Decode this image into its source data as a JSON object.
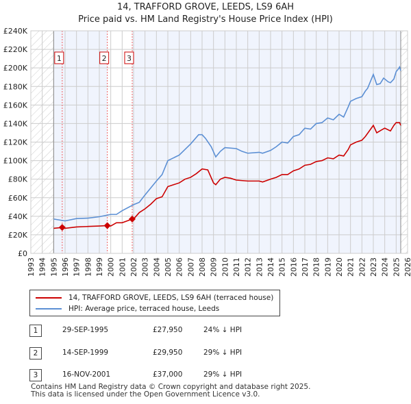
{
  "chart_data": {
    "type": "line",
    "title": "14, TRAFFORD GROVE, LEEDS, LS9 6AH",
    "subtitle": "Price paid vs. HM Land Registry's House Price Index (HPI)",
    "xlim": [
      1993,
      2026
    ],
    "ylim": [
      0,
      240000
    ],
    "x_ticks": [
      "1993",
      "1994",
      "1995",
      "1996",
      "1997",
      "1998",
      "1999",
      "2000",
      "2001",
      "2002",
      "2003",
      "2004",
      "2005",
      "2006",
      "2007",
      "2008",
      "2009",
      "2010",
      "2011",
      "2012",
      "2013",
      "2014",
      "2015",
      "2016",
      "2017",
      "2018",
      "2019",
      "2020",
      "2021",
      "2022",
      "2023",
      "2024",
      "2025",
      "2026"
    ],
    "y_ticks": [
      "£0",
      "£20K",
      "£40K",
      "£60K",
      "£80K",
      "£100K",
      "£120K",
      "£140K",
      "£160K",
      "£180K",
      "£200K",
      "£220K",
      "£240K"
    ],
    "grid": true,
    "series": [
      {
        "name": "14, TRAFFORD GROVE, LEEDS, LS9 6AH (terraced house)",
        "color": "#cc0000",
        "x": [
          1995,
          1995.75,
          1996,
          1997,
          1998,
          1999,
          1999.7,
          2000,
          2000.5,
          2001,
          2001.88,
          2002,
          2002.5,
          2003,
          2003.5,
          2004,
          2004.5,
          2005,
          2005.5,
          2006,
          2006.5,
          2007,
          2007.5,
          2008,
          2008.5,
          2009,
          2009.2,
          2009.6,
          2010,
          2010.5,
          2011,
          2012,
          2013,
          2013.3,
          2014,
          2014.5,
          2015,
          2015.5,
          2016,
          2016.5,
          2017,
          2017.5,
          2018,
          2018.5,
          2019,
          2019.5,
          2020,
          2020.4,
          2020.8,
          2021,
          2021.5,
          2022,
          2022.3,
          2023,
          2023.3,
          2023.7,
          2024,
          2024.5,
          2024.8,
          2025,
          2025.3,
          2025.4
        ],
        "y": [
          27,
          27.95,
          27,
          28.5,
          29,
          29.5,
          29.95,
          29.5,
          33,
          33,
          37,
          37,
          44,
          48,
          53,
          59,
          61,
          72,
          74,
          76,
          80,
          82,
          86,
          91,
          90,
          76,
          74,
          80,
          82,
          81,
          79,
          78,
          78,
          77,
          80,
          82,
          85,
          85,
          89,
          91,
          95,
          96,
          99,
          100,
          103,
          102,
          106,
          105,
          112,
          117,
          120,
          122,
          126,
          138,
          130,
          133,
          135,
          132,
          138,
          141,
          141,
          138
        ]
      },
      {
        "name": "HPI: Average price, terraced house, Leeds",
        "color": "#5b8fd4",
        "x": [
          1995,
          1996,
          1997,
          1998,
          1999,
          2000,
          2000.5,
          2001,
          2002,
          2002.5,
          2003,
          2004,
          2004.5,
          2005,
          2006,
          2006.5,
          2007,
          2007.7,
          2008,
          2008.3,
          2008.8,
          2009.2,
          2009.6,
          2010,
          2011,
          2011.5,
          2012,
          2013,
          2013.3,
          2014,
          2014.5,
          2015,
          2015.5,
          2016,
          2016.5,
          2017,
          2017.5,
          2018,
          2018.5,
          2019,
          2019.5,
          2020,
          2020.4,
          2020.8,
          2021,
          2021.5,
          2022,
          2022.3,
          2022.5,
          2023,
          2023.3,
          2023.6,
          2023.9,
          2024.3,
          2024.5,
          2024.8,
          2025,
          2025.2,
          2025.3,
          2025.4
        ],
        "y": [
          37,
          35,
          37.5,
          38,
          39.5,
          42,
          42,
          46,
          52.5,
          55,
          63,
          78,
          85,
          100,
          106,
          112,
          118,
          128,
          128,
          124,
          115,
          104,
          110,
          114,
          113,
          110,
          108,
          109,
          108,
          111,
          115,
          120,
          119,
          126,
          128,
          135,
          134,
          140,
          141,
          146,
          144,
          150,
          147,
          158,
          164,
          167,
          169,
          175,
          178,
          193,
          182,
          183,
          189,
          185,
          184,
          188,
          196,
          199,
          201,
          197
        ]
      }
    ],
    "sales": [
      {
        "label": "1",
        "x": 1995.75,
        "y": 27.95
      },
      {
        "label": "2",
        "x": 1999.7,
        "y": 29.95
      },
      {
        "label": "3",
        "x": 2001.88,
        "y": 37
      }
    ],
    "legend_placement": "below"
  },
  "legend": {
    "red": "14, TRAFFORD GROVE, LEEDS, LS9 6AH (terraced house)",
    "blue": "HPI: Average price, terraced house, Leeds"
  },
  "table": [
    {
      "num": "1",
      "date": "29-SEP-1995",
      "price": "£27,950",
      "hpi": "24% ↓ HPI"
    },
    {
      "num": "2",
      "date": "14-SEP-1999",
      "price": "£29,950",
      "hpi": "29% ↓ HPI"
    },
    {
      "num": "3",
      "date": "16-NOV-2001",
      "price": "£37,000",
      "hpi": "29% ↓ HPI"
    }
  ],
  "footer": [
    "Contains HM Land Registry data © Crown copyright and database right 2025.",
    "This data is licensed under the Open Government Licence v3.0."
  ]
}
